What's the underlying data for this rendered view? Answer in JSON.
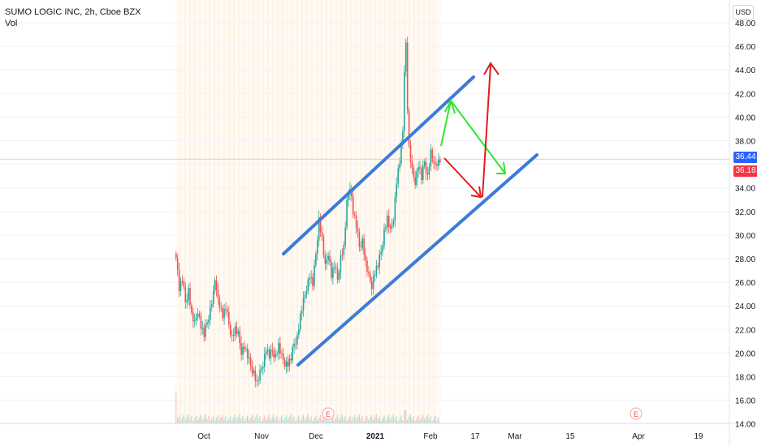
{
  "header": {
    "symbol_line": "SUMO LOGIC INC, 2h, Cboe BZX",
    "indicator": "Vol"
  },
  "currency_badge": "USD",
  "price_axis": {
    "labels": [
      "48.00",
      "46.00",
      "44.00",
      "42.00",
      "40.00",
      "38.00",
      "34.00",
      "32.00",
      "30.00",
      "28.00",
      "26.00",
      "24.00",
      "22.00",
      "20.00",
      "18.00",
      "16.00",
      "14.00"
    ]
  },
  "time_axis": {
    "labels": [
      "Oct",
      "Nov",
      "Dec",
      "2021",
      "Feb",
      "17",
      "Mar",
      "15",
      "Apr",
      "19"
    ]
  },
  "last_price": {
    "label": "36.44",
    "color": "#2962ff"
  },
  "prev_close": {
    "label": "36.18",
    "color": "#f23645"
  },
  "events": [
    {
      "letter": "E"
    },
    {
      "letter": "E"
    }
  ],
  "colors": {
    "up": "#26a69a",
    "down": "#ef5350",
    "channel": "#3d7bd9",
    "green_arrow": "#2ee82e",
    "red_arrow": "#e01c1c"
  },
  "chart_data": {
    "type": "candlestick",
    "title": "SUMO LOGIC INC, 2h, Cboe BZX",
    "ylim": [
      14,
      48.5
    ],
    "x_tick_labels": [
      "Oct",
      "Nov",
      "Dec",
      "2021",
      "Feb",
      "17",
      "Mar",
      "15",
      "Apr",
      "19"
    ],
    "price_path": [
      [
        0,
        28.4
      ],
      [
        2,
        25.5
      ],
      [
        4,
        26.2
      ],
      [
        6,
        24.3
      ],
      [
        8,
        25.4
      ],
      [
        10,
        23.2
      ],
      [
        12,
        22.4
      ],
      [
        14,
        23.7
      ],
      [
        16,
        22.3
      ],
      [
        18,
        21.5
      ],
      [
        20,
        22.6
      ],
      [
        22,
        23.8
      ],
      [
        24,
        25.0
      ],
      [
        25,
        26.3
      ],
      [
        26,
        25.0
      ],
      [
        28,
        24.2
      ],
      [
        30,
        23.2
      ],
      [
        32,
        23.8
      ],
      [
        34,
        22.4
      ],
      [
        36,
        21.4
      ],
      [
        38,
        22.0
      ],
      [
        40,
        21.5
      ],
      [
        42,
        20.2
      ],
      [
        44,
        20.6
      ],
      [
        46,
        19.7
      ],
      [
        48,
        18.9
      ],
      [
        50,
        18.4
      ],
      [
        52,
        17.4
      ],
      [
        54,
        18.2
      ],
      [
        56,
        19.2
      ],
      [
        58,
        20.4
      ],
      [
        60,
        19.7
      ],
      [
        62,
        20.2
      ],
      [
        64,
        19.8
      ],
      [
        66,
        20.6
      ],
      [
        68,
        19.6
      ],
      [
        70,
        19.2
      ],
      [
        72,
        19.1
      ],
      [
        74,
        19.5
      ],
      [
        76,
        20.8
      ],
      [
        78,
        21.4
      ],
      [
        80,
        23.1
      ],
      [
        82,
        24.3
      ],
      [
        84,
        25.6
      ],
      [
        86,
        26.6
      ],
      [
        88,
        25.8
      ],
      [
        90,
        28.4
      ],
      [
        92,
        31.4
      ],
      [
        94,
        29.6
      ],
      [
        96,
        27.2
      ],
      [
        98,
        28.6
      ],
      [
        100,
        26.6
      ],
      [
        102,
        27.4
      ],
      [
        104,
        26.2
      ],
      [
        106,
        28.2
      ],
      [
        108,
        28.9
      ],
      [
        110,
        32.6
      ],
      [
        112,
        34.3
      ],
      [
        114,
        32.0
      ],
      [
        116,
        30.8
      ],
      [
        118,
        29.0
      ],
      [
        120,
        29.6
      ],
      [
        122,
        27.6
      ],
      [
        124,
        26.4
      ],
      [
        126,
        25.8
      ],
      [
        128,
        26.9
      ],
      [
        130,
        27.4
      ],
      [
        132,
        28.6
      ],
      [
        134,
        30.4
      ],
      [
        136,
        31.4
      ],
      [
        138,
        30.2
      ],
      [
        140,
        31.6
      ],
      [
        142,
        34.6
      ],
      [
        144,
        36.2
      ],
      [
        146,
        38.8
      ],
      [
        147,
        44.2
      ],
      [
        148,
        46.2
      ],
      [
        149,
        40.8
      ],
      [
        150,
        37.4
      ],
      [
        152,
        35.3
      ],
      [
        154,
        34.6
      ],
      [
        156,
        36.0
      ],
      [
        158,
        34.8
      ],
      [
        160,
        36.2
      ],
      [
        162,
        35.0
      ],
      [
        164,
        37.0
      ],
      [
        166,
        35.8
      ],
      [
        168,
        36.2
      ],
      [
        170,
        36.44
      ]
    ],
    "series": [
      {
        "name": "SUMO LOGIC INC",
        "last": 36.44
      }
    ],
    "annotations": {
      "upper_channel": [
        [
          20,
          28.5
        ],
        [
          166,
          43.0
        ]
      ],
      "lower_channel": [
        [
          48,
          19.0
        ],
        [
          198,
          36.2
        ]
      ],
      "green_path": [
        [
          174,
          36.6
        ],
        [
          178,
          41.5
        ],
        [
          188,
          35.0
        ]
      ],
      "red_arrow_down": [
        [
          176,
          34.5
        ],
        [
          190,
          33.0
        ]
      ],
      "red_arrow_up": [
        [
          188,
          33.0
        ],
        [
          192,
          44.5
        ]
      ]
    },
    "volume_present": true,
    "grid": true,
    "legend": "top-left"
  }
}
